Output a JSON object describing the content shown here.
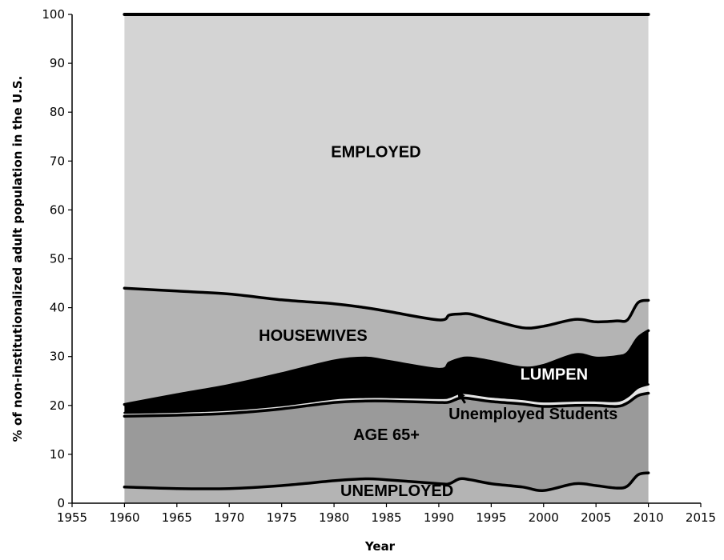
{
  "chart_data": {
    "type": "area",
    "stacked": true,
    "xlabel": "Year",
    "ylabel": "% of non-institutionalized adult population in the U.S.",
    "xlim": [
      1955,
      2015
    ],
    "ylim": [
      0,
      100
    ],
    "x_ticks": [
      1955,
      1960,
      1965,
      1970,
      1975,
      1980,
      1985,
      1990,
      1995,
      2000,
      2005,
      2010,
      2015
    ],
    "y_ticks": [
      0,
      10,
      20,
      30,
      40,
      50,
      60,
      70,
      80,
      90,
      100
    ],
    "grid": false,
    "legend": "none",
    "x": [
      1960,
      1965,
      1970,
      1975,
      1980,
      1983,
      1985,
      1990,
      1991,
      1992,
      1993,
      1995,
      1998,
      2000,
      2003,
      2005,
      2007,
      2008,
      2009,
      2010
    ],
    "series": [
      {
        "name": "UNEMPLOYED",
        "values": [
          3.3,
          3.0,
          3.0,
          3.6,
          4.6,
          5.0,
          4.8,
          4.0,
          4.0,
          5.0,
          4.8,
          4.0,
          3.3,
          2.6,
          4.0,
          3.6,
          3.1,
          3.5,
          5.8,
          6.2
        ]
      },
      {
        "name": "AGE 65+",
        "values": [
          14.5,
          15.0,
          15.4,
          15.7,
          16.0,
          15.9,
          16.1,
          16.6,
          16.7,
          16.5,
          16.6,
          16.8,
          17.0,
          17.2,
          16.0,
          16.4,
          16.7,
          17.0,
          16.2,
          16.3
        ]
      },
      {
        "name": "Unemployed Students",
        "values": [
          0.7,
          0.7,
          0.7,
          0.7,
          0.8,
          0.8,
          0.8,
          0.9,
          1.0,
          1.0,
          1.0,
          1.0,
          1.0,
          1.0,
          1.0,
          1.0,
          1.1,
          1.3,
          1.6,
          1.8
        ]
      },
      {
        "name": "LUMPEN",
        "values": [
          1.7,
          3.5,
          5.0,
          6.5,
          7.7,
          8.0,
          7.4,
          5.9,
          7.0,
          7.0,
          7.3,
          7.2,
          6.4,
          7.4,
          9.4,
          8.7,
          9.1,
          8.9,
          10.2,
          11.0
        ]
      },
      {
        "name": "HOUSEWIVES",
        "values": [
          23.8,
          21.2,
          18.7,
          15.1,
          11.7,
          10.3,
          10.2,
          10.1,
          9.8,
          9.2,
          9.0,
          8.5,
          8.2,
          8.0,
          7.2,
          7.4,
          7.3,
          6.8,
          7.2,
          6.2
        ]
      },
      {
        "name": "EMPLOYED",
        "values": [
          56.0,
          56.6,
          57.2,
          58.4,
          59.2,
          60.0,
          60.7,
          62.5,
          61.5,
          61.3,
          61.3,
          62.5,
          64.1,
          63.8,
          62.4,
          62.9,
          62.7,
          62.5,
          59.0,
          58.5
        ]
      }
    ],
    "annotations": [
      {
        "text": "EMPLOYED",
        "x": 1984,
        "y": 70.8,
        "color": "#000000"
      },
      {
        "text": "HOUSEWIVES",
        "x": 1978,
        "y": 33.2,
        "color": "#000000"
      },
      {
        "text": "LUMPEN",
        "x": 2001,
        "y": 25.3,
        "color": "#ffffff"
      },
      {
        "text": "Unemployed Students",
        "x": 1999,
        "y": 17.2,
        "color": "#000000",
        "arrow_to": [
          1991.8,
          23.0
        ]
      },
      {
        "text": "AGE 65+",
        "x": 1985,
        "y": 12.9,
        "color": "#000000"
      },
      {
        "text": "UNEMPLOYED",
        "x": 1986,
        "y": 1.5,
        "color": "#000000"
      }
    ],
    "colors": {
      "UNEMPLOYED": "#b4b4b4",
      "AGE 65+": "#9a9a9a",
      "Unemployed Students": "#e6e6e6",
      "LUMPEN": "#000000",
      "HOUSEWIVES": "#b4b4b4",
      "EMPLOYED": "#d4d4d4"
    }
  }
}
